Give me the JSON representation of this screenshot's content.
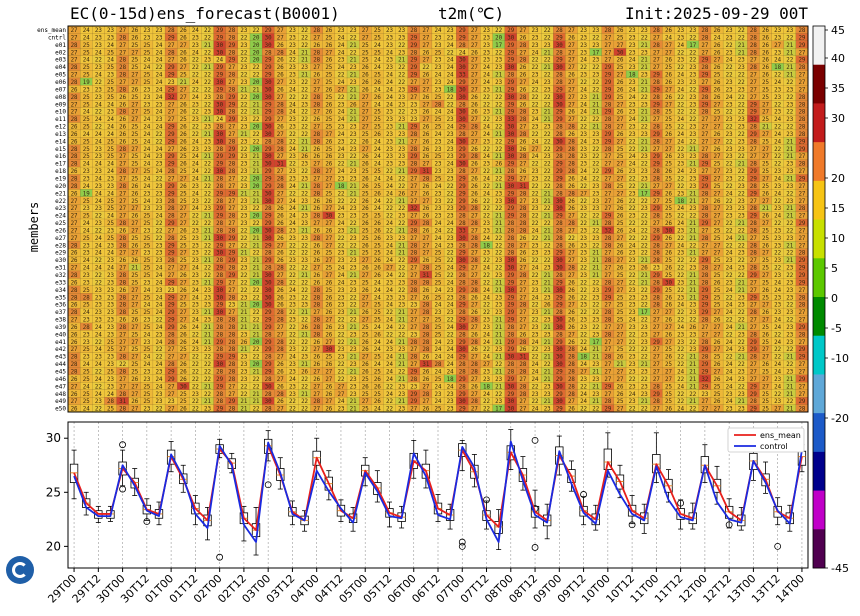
{
  "header": {
    "left": "EC(0-15d)ens_forecast(B0001)",
    "middle": "t2m(℃)",
    "right": "Init:2025-09-29 00T"
  },
  "ylabel": "members",
  "members": [
    "ens_mean",
    "cntrl",
    "e01",
    "e02",
    "e03",
    "e04",
    "e05",
    "e06",
    "e07",
    "e08",
    "e09",
    "e10",
    "e11",
    "e12",
    "e13",
    "e14",
    "e15",
    "e16",
    "e17",
    "e18",
    "e19",
    "e20",
    "e21",
    "e22",
    "e23",
    "e24",
    "e25",
    "e26",
    "e27",
    "e28",
    "e29",
    "e30",
    "e31",
    "e32",
    "e33",
    "e34",
    "e35",
    "e36",
    "e37",
    "e38",
    "e39",
    "e40",
    "e41",
    "e42",
    "e43",
    "e44",
    "e45",
    "e46",
    "e47",
    "e48",
    "e49",
    "e50"
  ],
  "x_labels": [
    "29T00",
    "29T12",
    "30T00",
    "30T12",
    "01T00",
    "01T12",
    "02T00",
    "02T12",
    "03T00",
    "03T12",
    "04T00",
    "04T12",
    "05T00",
    "05T12",
    "06T00",
    "06T12",
    "07T00",
    "07T12",
    "08T00",
    "08T12",
    "09T00",
    "09T12",
    "10T00",
    "10T12",
    "11T00",
    "11T12",
    "12T00",
    "12T12",
    "13T00",
    "13T12",
    "14T00"
  ],
  "colorbar": {
    "ticks": [
      "45",
      "40",
      "35",
      "30",
      "20",
      "15",
      "10",
      "5",
      "0",
      "-5",
      "-10",
      "-20",
      "-45"
    ],
    "colors": [
      "#f2f2f2",
      "#7a0000",
      "#c21c1c",
      "#f07a2a",
      "#f6c414",
      "#c8e000",
      "#5cc800",
      "#008a00",
      "#00c8c8",
      "#5fa8d8",
      "#1c5ac8",
      "#00008c",
      "#c000c8",
      "#500050"
    ]
  },
  "legend": {
    "ens_mean": "ens_mean",
    "control": "control"
  },
  "chart_data": [
    {
      "type": "heatmap",
      "title": "EC(0-15d)ens_forecast(B0001)  t2m(℃)",
      "ylabel": "members",
      "x": [
        "29T00",
        "29T06",
        "29T12",
        "29T18",
        "30T00",
        "30T06",
        "30T12",
        "30T18",
        "01T00",
        "01T06",
        "01T12",
        "01T18",
        "02T00",
        "02T06",
        "02T12",
        "02T18",
        "03T00",
        "03T06",
        "03T12",
        "03T18",
        "04T00",
        "04T06",
        "04T12",
        "04T18",
        "05T00",
        "05T06",
        "05T12",
        "05T18",
        "06T00",
        "06T06",
        "06T12",
        "06T18",
        "07T00",
        "07T06",
        "07T12",
        "07T18",
        "08T00",
        "08T06",
        "08T12",
        "08T18",
        "09T00",
        "09T06",
        "09T12",
        "09T18",
        "10T00",
        "10T06",
        "10T12",
        "10T18",
        "11T00",
        "11T06",
        "11T12",
        "11T18",
        "12T00",
        "12T06",
        "12T12",
        "12T18",
        "13T00",
        "13T06",
        "13T12",
        "13T18",
        "14T00"
      ],
      "cycle": [
        27,
        24,
        23,
        24,
        27,
        26,
        24,
        23,
        28,
        26,
        23,
        22,
        29,
        28,
        22,
        21,
        29,
        27,
        23,
        22,
        27,
        26,
        23,
        22,
        26,
        25,
        23,
        22,
        28,
        27,
        24,
        23,
        29,
        27,
        23,
        22,
        29,
        27,
        23,
        22,
        29,
        27,
        23,
        22,
        28,
        26,
        23,
        22,
        28,
        26,
        23,
        22,
        28,
        26,
        23,
        22,
        28,
        26,
        23,
        22,
        28
      ],
      "value_range": [
        20,
        31
      ],
      "colorbar_range": [
        -45,
        45
      ]
    },
    {
      "type": "line",
      "x": [
        "29T00",
        "29T06",
        "29T12",
        "29T18",
        "30T00",
        "30T06",
        "30T12",
        "30T18",
        "01T00",
        "01T06",
        "01T12",
        "01T18",
        "02T00",
        "02T06",
        "02T12",
        "02T18",
        "03T00",
        "03T06",
        "03T12",
        "03T18",
        "04T00",
        "04T06",
        "04T12",
        "04T18",
        "05T00",
        "05T06",
        "05T12",
        "05T18",
        "06T00",
        "06T06",
        "06T12",
        "06T18",
        "07T00",
        "07T06",
        "07T12",
        "07T18",
        "08T00",
        "08T06",
        "08T12",
        "08T18",
        "09T00",
        "09T06",
        "09T12",
        "09T18",
        "10T00",
        "10T06",
        "10T12",
        "10T18",
        "11T00",
        "11T06",
        "11T12",
        "11T18",
        "12T00",
        "12T06",
        "12T12",
        "12T18",
        "13T00",
        "13T06",
        "13T12",
        "13T18",
        "14T00"
      ],
      "ylim": [
        18,
        31.5
      ],
      "yticks": [
        20,
        25,
        30
      ],
      "legend_position": "top-right",
      "series": [
        {
          "name": "ens_mean",
          "color": "#e8201c",
          "values": [
            26.8,
            24.0,
            23.0,
            23.0,
            27.2,
            25.9,
            23.4,
            23.0,
            28.3,
            26.2,
            23.5,
            22.4,
            29.0,
            27.7,
            22.6,
            21.5,
            29.3,
            26.6,
            23.2,
            22.4,
            28.2,
            25.8,
            23.3,
            22.6,
            27.0,
            25.4,
            23.1,
            22.7,
            27.9,
            27.0,
            23.5,
            22.9,
            28.9,
            26.9,
            22.9,
            21.8,
            28.7,
            26.6,
            23.2,
            22.4,
            28.4,
            26.5,
            23.3,
            22.5,
            27.8,
            26.0,
            23.3,
            22.6,
            27.6,
            25.6,
            23.0,
            22.6,
            27.5,
            25.6,
            23.2,
            22.4,
            27.9,
            26.2,
            23.2,
            22.6,
            28.3
          ]
        },
        {
          "name": "control",
          "color": "#1a2ae0",
          "values": [
            26.5,
            23.6,
            22.8,
            22.8,
            27.5,
            25.6,
            23.3,
            22.8,
            28.5,
            26.4,
            23.0,
            21.7,
            29.3,
            27.5,
            22.0,
            20.4,
            29.6,
            26.8,
            23.0,
            22.4,
            27.0,
            25.1,
            23.5,
            22.2,
            26.8,
            25.1,
            22.8,
            22.6,
            28.6,
            26.5,
            22.9,
            22.5,
            29.2,
            27.3,
            22.5,
            20.4,
            29.7,
            26.1,
            22.9,
            22.2,
            28.8,
            25.8,
            23.1,
            22.1,
            27.0,
            24.8,
            23.0,
            22.4,
            27.4,
            24.3,
            22.7,
            22.4,
            27.5,
            24.1,
            22.5,
            22.2,
            27.9,
            25.9,
            23.3,
            22.1,
            28.9
          ]
        }
      ],
      "boxes": {
        "q1": [
          25.9,
          23.6,
          22.6,
          22.6,
          26.6,
          25.4,
          23.0,
          22.6,
          27.6,
          25.8,
          23.0,
          21.9,
          28.6,
          27.2,
          22.1,
          20.9,
          28.6,
          26.1,
          22.8,
          22.0,
          27.5,
          25.2,
          22.8,
          22.2,
          26.5,
          24.8,
          22.7,
          22.3,
          27.2,
          26.3,
          23.0,
          22.4,
          28.3,
          26.3,
          22.4,
          21.2,
          28.0,
          26.0,
          22.7,
          21.9,
          27.6,
          25.9,
          22.8,
          22.0,
          27.1,
          25.3,
          22.8,
          22.1,
          26.8,
          25.0,
          22.5,
          22.1,
          26.8,
          25.0,
          22.6,
          21.9,
          27.1,
          25.6,
          22.7,
          22.1,
          27.5
        ],
        "q3": [
          27.6,
          24.4,
          23.3,
          23.3,
          27.8,
          26.3,
          23.8,
          23.4,
          28.9,
          26.7,
          24.0,
          22.9,
          29.4,
          28.1,
          23.1,
          22.1,
          29.9,
          27.2,
          23.6,
          22.8,
          28.8,
          26.4,
          23.8,
          23.0,
          27.5,
          25.9,
          23.5,
          23.1,
          28.6,
          27.6,
          24.0,
          23.4,
          29.5,
          27.5,
          23.3,
          22.3,
          29.3,
          27.2,
          23.7,
          22.9,
          29.2,
          27.1,
          23.7,
          23.0,
          29.0,
          26.6,
          23.8,
          23.1,
          28.5,
          26.2,
          23.5,
          23.1,
          28.3,
          26.2,
          23.7,
          22.9,
          28.6,
          26.7,
          23.7,
          23.1,
          28.8
        ],
        "whisker_lo": [
          24.4,
          22.9,
          22.2,
          22.3,
          25.6,
          24.7,
          22.4,
          22.0,
          26.9,
          25.0,
          22.0,
          20.6,
          28.2,
          26.8,
          20.5,
          19.2,
          27.9,
          25.3,
          22.0,
          21.4,
          26.2,
          24.3,
          22.3,
          21.4,
          25.6,
          24.1,
          21.8,
          21.7,
          26.3,
          25.4,
          22.3,
          21.6,
          27.0,
          25.5,
          21.6,
          19.7,
          27.1,
          25.2,
          21.7,
          20.7,
          26.6,
          25.1,
          22.0,
          21.5,
          26.4,
          24.5,
          22.1,
          21.2,
          25.9,
          24.1,
          21.6,
          21.6,
          25.9,
          23.9,
          21.7,
          21.5,
          26.1,
          24.9,
          22.0,
          21.4,
          26.9
        ],
        "whisker_hi": [
          28.9,
          25.0,
          23.7,
          23.7,
          28.9,
          27.2,
          24.4,
          24.1,
          29.7,
          27.5,
          24.7,
          23.6,
          29.9,
          28.6,
          23.7,
          23.6,
          30.7,
          28.2,
          24.2,
          23.3,
          30.0,
          27.0,
          24.3,
          23.6,
          28.2,
          27.0,
          24.1,
          23.7,
          29.8,
          28.9,
          24.8,
          23.9,
          29.8,
          28.5,
          24.2,
          23.4,
          30.8,
          28.3,
          25.2,
          23.9,
          30.2,
          27.9,
          24.6,
          23.8,
          30.5,
          27.5,
          24.7,
          23.9,
          30.5,
          27.1,
          24.3,
          24.0,
          29.4,
          27.4,
          24.4,
          23.6,
          29.3,
          27.8,
          24.5,
          23.8,
          29.4
        ],
        "outliers": [
          {
            "x": "30T00",
            "y": 29.4
          },
          {
            "x": "30T00",
            "y": 25.3
          },
          {
            "x": "30T12",
            "y": 22.3
          },
          {
            "x": "02T00",
            "y": 19.0
          },
          {
            "x": "03T00",
            "y": 25.7
          },
          {
            "x": "07T00",
            "y": 20.4
          },
          {
            "x": "07T00",
            "y": 20.0
          },
          {
            "x": "07T12",
            "y": 24.3
          },
          {
            "x": "08T12",
            "y": 19.9
          },
          {
            "x": "08T12",
            "y": 29.8
          },
          {
            "x": "08T12",
            "y": 23.5
          },
          {
            "x": "09T12",
            "y": 24.8
          },
          {
            "x": "10T12",
            "y": 22.0
          },
          {
            "x": "11T12",
            "y": 24.0
          },
          {
            "x": "12T12",
            "y": 22.0
          },
          {
            "x": "13T12",
            "y": 20.0
          }
        ]
      }
    }
  ]
}
